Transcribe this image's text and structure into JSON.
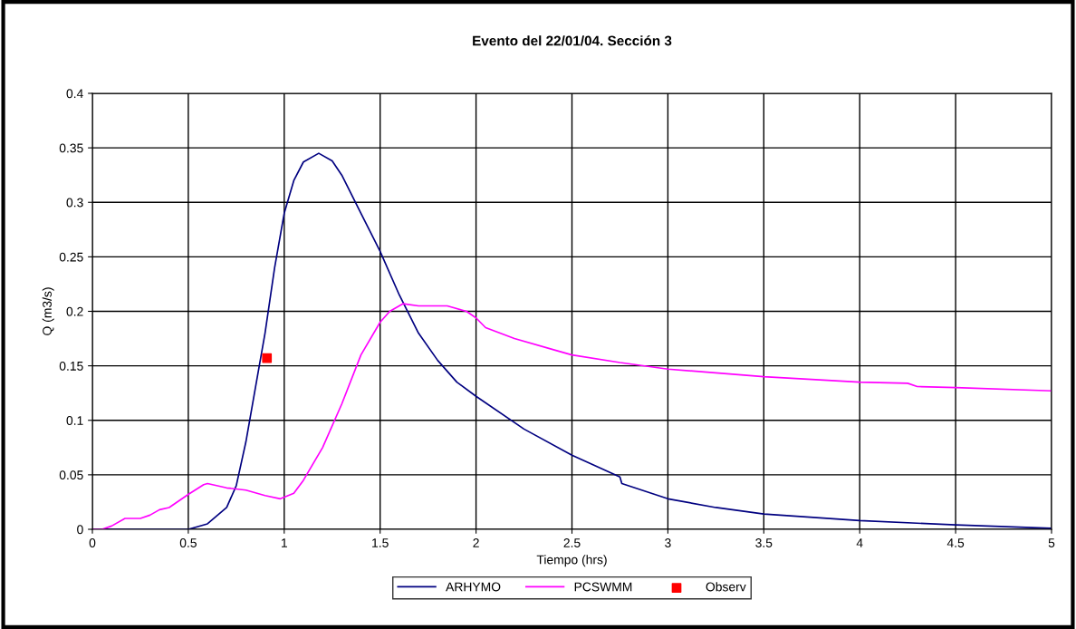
{
  "chart_data": {
    "type": "line",
    "title": "Evento del 22/01/04. Sección 3",
    "xlabel": "Tiempo (hrs)",
    "ylabel": "Q (m3/s)",
    "xlim": [
      0,
      5
    ],
    "xticks": [
      0,
      0.5,
      1,
      1.5,
      2,
      2.5,
      3,
      3.5,
      4,
      4.5,
      5
    ],
    "ylim": [
      0,
      0.4
    ],
    "yticks": [
      0,
      0.05,
      0.1,
      0.15,
      0.2,
      0.25,
      0.3,
      0.35,
      0.4
    ],
    "grid": true,
    "legend": "bottom",
    "series": [
      {
        "name": "ARHYMO",
        "color": "#000080",
        "x": [
          0,
          0.5,
          0.6,
          0.7,
          0.75,
          0.8,
          0.85,
          0.9,
          0.95,
          1.0,
          1.05,
          1.1,
          1.18,
          1.25,
          1.3,
          1.4,
          1.5,
          1.6,
          1.7,
          1.8,
          1.9,
          2.0,
          2.25,
          2.5,
          2.75,
          2.76,
          3.0,
          3.25,
          3.5,
          4.0,
          4.5,
          5.0
        ],
        "values": [
          0,
          0,
          0.005,
          0.02,
          0.04,
          0.08,
          0.13,
          0.18,
          0.24,
          0.29,
          0.32,
          0.337,
          0.345,
          0.338,
          0.325,
          0.29,
          0.255,
          0.215,
          0.18,
          0.155,
          0.135,
          0.122,
          0.092,
          0.068,
          0.048,
          0.042,
          0.028,
          0.02,
          0.014,
          0.008,
          0.004,
          0.001
        ]
      },
      {
        "name": "PCSWMM",
        "color": "#ff00ff",
        "x": [
          0,
          0.05,
          0.1,
          0.17,
          0.25,
          0.3,
          0.35,
          0.4,
          0.45,
          0.5,
          0.58,
          0.6,
          0.7,
          0.8,
          0.9,
          0.98,
          1.05,
          1.1,
          1.2,
          1.3,
          1.4,
          1.5,
          1.55,
          1.62,
          1.7,
          1.85,
          1.95,
          2.0,
          2.05,
          2.2,
          2.4,
          2.5,
          2.75,
          3.0,
          3.5,
          4.0,
          4.25,
          4.3,
          4.5,
          5.0
        ],
        "values": [
          0,
          0,
          0.003,
          0.01,
          0.01,
          0.013,
          0.018,
          0.02,
          0.026,
          0.032,
          0.041,
          0.042,
          0.038,
          0.036,
          0.031,
          0.028,
          0.033,
          0.045,
          0.075,
          0.115,
          0.16,
          0.19,
          0.2,
          0.207,
          0.205,
          0.205,
          0.2,
          0.194,
          0.185,
          0.175,
          0.165,
          0.16,
          0.153,
          0.147,
          0.14,
          0.135,
          0.134,
          0.131,
          0.13,
          0.127
        ]
      },
      {
        "name": "Observ",
        "type": "scatter",
        "marker": "square",
        "color": "#ff0000",
        "x": [
          0.91
        ],
        "values": [
          0.157
        ]
      }
    ]
  }
}
